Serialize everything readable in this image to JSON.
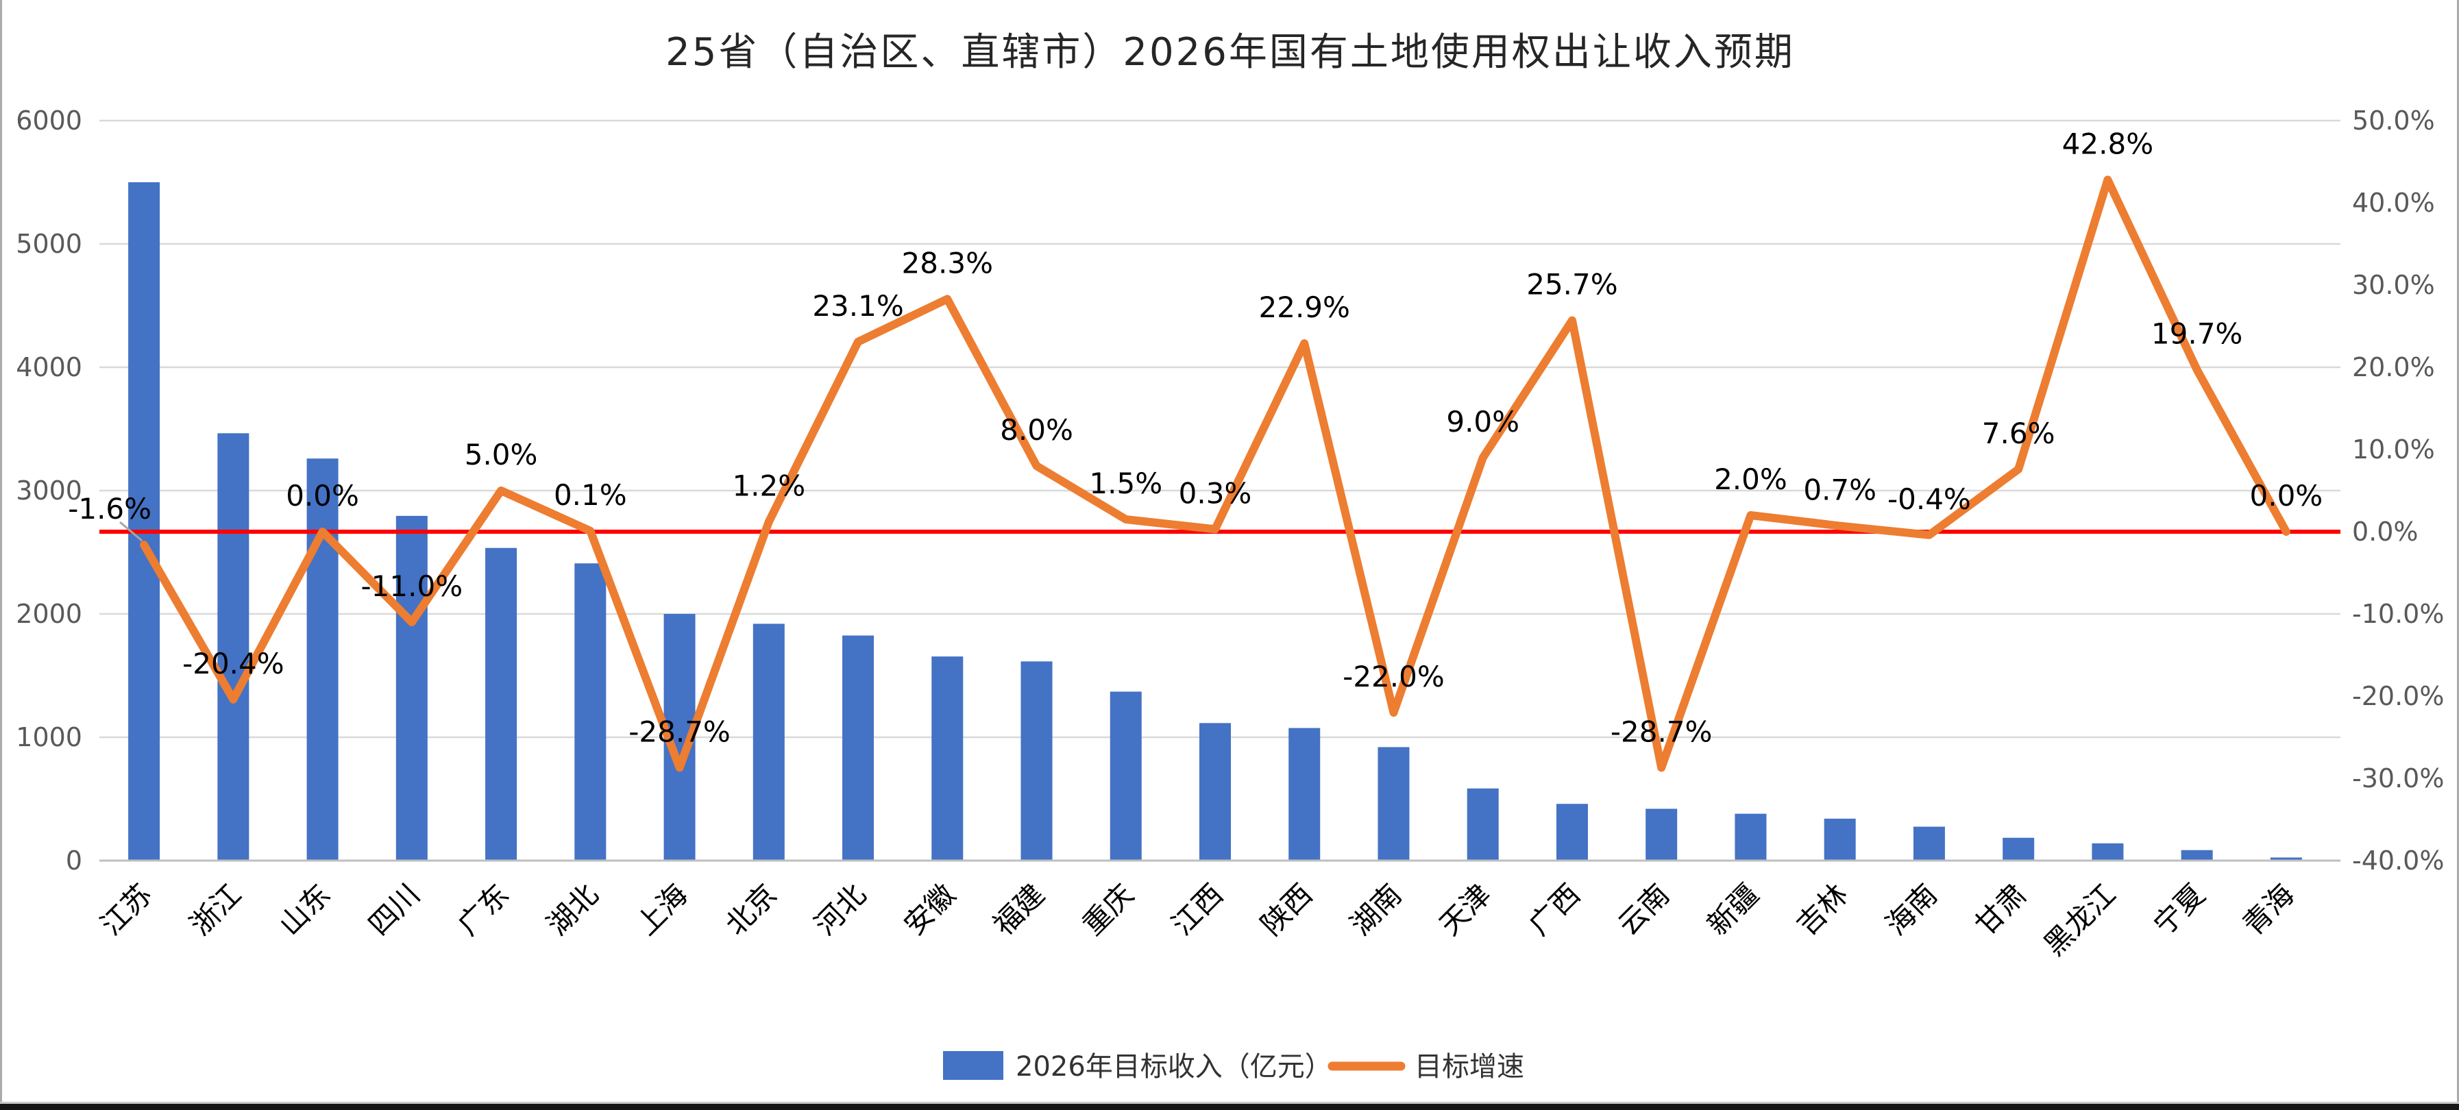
{
  "chart_data": {
    "type": "combo-bar-line",
    "title": "25省（自治区、直辖市）2026年国有土地使用权出让收入预期",
    "categories": [
      "江苏",
      "浙江",
      "山东",
      "四川",
      "广东",
      "湖北",
      "上海",
      "北京",
      "河北",
      "安徽",
      "福建",
      "重庆",
      "江西",
      "陕西",
      "湖南",
      "天津",
      "广西",
      "云南",
      "新疆",
      "吉林",
      "海南",
      "甘肃",
      "黑龙江",
      "宁夏",
      "青海"
    ],
    "series": [
      {
        "name": "2026年目标收入（亿元）",
        "type": "bar",
        "axis": "left",
        "color": "#4472C4",
        "values": [
          5500,
          3465,
          3260,
          2795,
          2535,
          2410,
          2000,
          1920,
          1825,
          1655,
          1615,
          1370,
          1115,
          1075,
          920,
          585,
          460,
          420,
          380,
          340,
          275,
          185,
          140,
          85,
          25
        ]
      },
      {
        "name": "目标增速",
        "type": "line",
        "axis": "right",
        "color": "#ED7D31",
        "values": [
          -1.6,
          -20.4,
          0.0,
          -11.0,
          5.0,
          0.1,
          -28.7,
          1.2,
          23.1,
          28.3,
          8.0,
          1.5,
          0.3,
          22.9,
          -22.0,
          9.0,
          25.7,
          -28.7,
          2.0,
          0.7,
          -0.4,
          7.6,
          42.8,
          19.7,
          0.0
        ],
        "labels": [
          "-1.6%",
          "-20.4%",
          "0.0%",
          "-11.0%",
          "5.0%",
          "0.1%",
          "-28.7%",
          "1.2%",
          "23.1%",
          "28.3%",
          "8.0%",
          "1.5%",
          "0.3%",
          "22.9%",
          "-22.0%",
          "9.0%",
          "25.7%",
          "-28.7%",
          "2.0%",
          "0.7%",
          "-0.4%",
          "7.6%",
          "42.8%",
          "19.7%",
          "0.0%"
        ]
      }
    ],
    "left_axis": {
      "min": 0,
      "max": 6000,
      "step": 1000,
      "tick_labels": [
        "0",
        "1000",
        "2000",
        "3000",
        "4000",
        "5000",
        "6000"
      ]
    },
    "right_axis": {
      "min": -40,
      "max": 50,
      "step": 10,
      "tick_labels": [
        "-40.0%",
        "-30.0%",
        "-20.0%",
        "-10.0%",
        "0.0%",
        "10.0%",
        "20.0%",
        "30.0%",
        "40.0%",
        "50.0%"
      ]
    },
    "reference_line": {
      "value": 0,
      "axis": "right",
      "color": "#FF0000"
    },
    "gridlines": "horizontal",
    "legend_position": "bottom"
  },
  "colors": {
    "bar": "#4472C4",
    "line": "#ED7D31",
    "reference": "#FF0000",
    "grid": "#D9D9D9",
    "axis_line": "#BFBFBF",
    "axis_text": "#595959",
    "label_text": "#000000",
    "title_text": "#262626",
    "leader_line": "#A6A6A6",
    "background": "#FFFFFF"
  }
}
